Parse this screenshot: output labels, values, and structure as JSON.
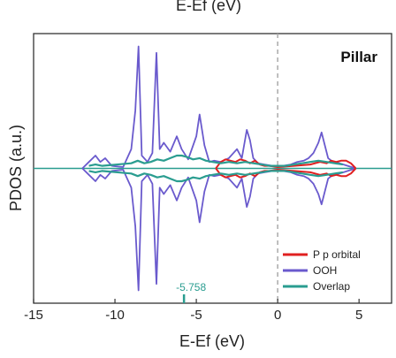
{
  "chart_data": {
    "type": "line",
    "top_label": "E-Ef (eV)",
    "panel_label": "Pillar",
    "xlabel": "E-Ef (eV)",
    "ylabel": "PDOS (a.u.)",
    "xlim": [
      -15,
      7
    ],
    "ylim": [
      -1.05,
      1.05
    ],
    "xticks": [
      -15,
      -10,
      -5,
      0,
      5
    ],
    "fermi_level": 0,
    "annotation": {
      "value": -5.758,
      "label": "-5.758",
      "color": "#2a9d90"
    },
    "colors": {
      "p_orbital": "#e02020",
      "ooh": "#6a5acd",
      "overlap": "#2a9d90"
    },
    "series": [
      {
        "name": "P p orbital",
        "color": "#e02020",
        "x": [
          -3.8,
          -3.5,
          -3.2,
          -2.9,
          -2.6,
          -2.3,
          -2.0,
          -1.7,
          -1.4,
          -1.1,
          -0.8,
          -0.5,
          0.0,
          1.0,
          2.0,
          2.6,
          3.0,
          3.3,
          3.6,
          3.9,
          4.2,
          4.5,
          4.8
        ],
        "values": [
          0.0,
          0.05,
          0.07,
          0.06,
          0.05,
          0.07,
          0.06,
          0.04,
          0.06,
          0.03,
          0.02,
          0.02,
          0.01,
          0.02,
          0.03,
          0.05,
          0.04,
          0.06,
          0.05,
          0.06,
          0.06,
          0.04,
          0.0
        ]
      },
      {
        "name": "OOH",
        "color": "#6a5acd",
        "x": [
          -12.0,
          -11.6,
          -11.2,
          -10.9,
          -10.6,
          -10.2,
          -9.5,
          -9.0,
          -8.75,
          -8.55,
          -8.35,
          -8.0,
          -7.7,
          -7.45,
          -7.25,
          -7.0,
          -6.6,
          -6.2,
          -5.9,
          -5.5,
          -5.0,
          -4.8,
          -4.5,
          -4.2,
          -3.9,
          -3.5,
          -3.0,
          -2.5,
          -2.2,
          -1.9,
          -1.7,
          -1.5,
          -1.2,
          -0.8,
          -0.3,
          0.3,
          0.8,
          1.2,
          1.6,
          1.9,
          2.2,
          2.5,
          2.7,
          2.9,
          3.1,
          3.4,
          3.8,
          4.3,
          4.8
        ],
        "values": [
          0.0,
          0.05,
          0.1,
          0.05,
          0.08,
          0.02,
          0.01,
          0.15,
          0.45,
          0.95,
          0.1,
          0.05,
          0.12,
          0.9,
          0.15,
          0.2,
          0.13,
          0.25,
          0.15,
          0.07,
          0.25,
          0.42,
          0.18,
          0.05,
          0.06,
          0.05,
          0.08,
          0.15,
          0.08,
          0.3,
          0.22,
          0.08,
          0.04,
          0.03,
          0.02,
          0.02,
          0.03,
          0.05,
          0.06,
          0.08,
          0.12,
          0.2,
          0.28,
          0.18,
          0.08,
          0.05,
          0.04,
          0.02,
          0.0
        ]
      },
      {
        "name": "Overlap",
        "color": "#2a9d90",
        "x": [
          -11.6,
          -11.2,
          -10.8,
          -9.0,
          -8.6,
          -8.2,
          -7.8,
          -7.4,
          -7.0,
          -6.6,
          -6.2,
          -5.9,
          -5.6,
          -5.2,
          -4.8,
          -4.4,
          -4.0,
          -3.5,
          -3.0,
          -2.5,
          -2.0,
          -1.5,
          -1.0,
          -0.5,
          0.5,
          1.0,
          1.5,
          2.0,
          2.5,
          3.0,
          3.5,
          4.0
        ],
        "values": [
          0.02,
          0.03,
          0.02,
          0.04,
          0.06,
          0.04,
          0.05,
          0.07,
          0.06,
          0.08,
          0.1,
          0.1,
          0.09,
          0.07,
          0.08,
          0.06,
          0.05,
          0.04,
          0.05,
          0.04,
          0.05,
          0.04,
          0.03,
          0.02,
          0.02,
          0.03,
          0.04,
          0.05,
          0.06,
          0.05,
          0.04,
          0.03
        ]
      }
    ]
  }
}
